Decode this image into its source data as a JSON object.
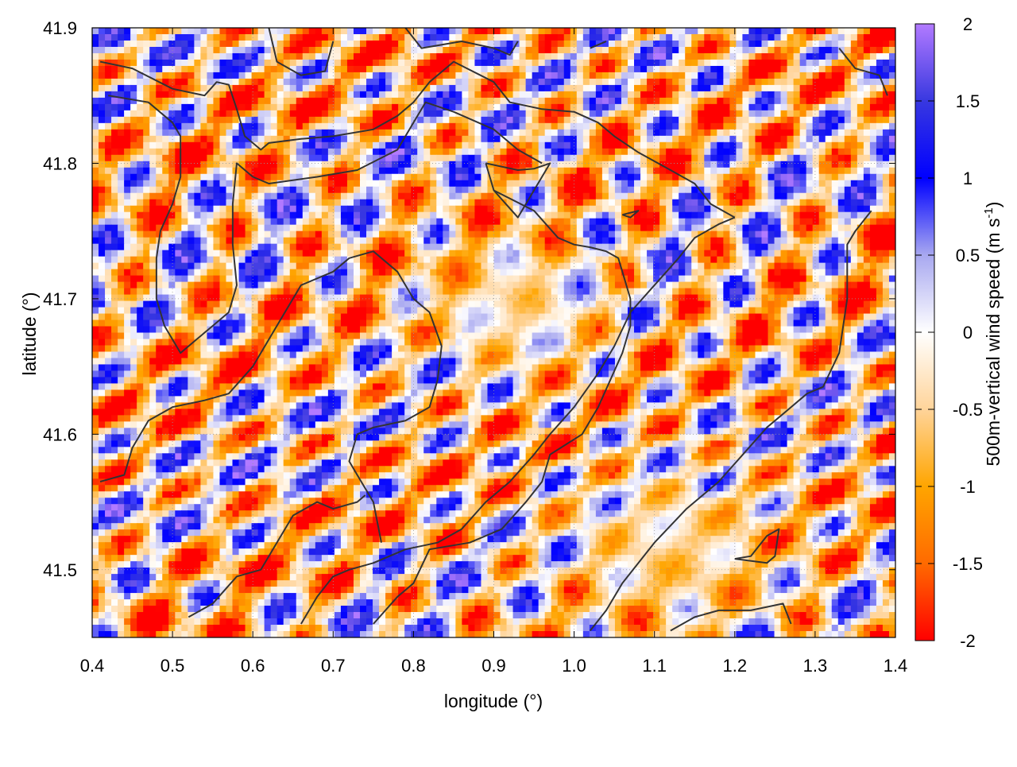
{
  "chart_data": {
    "type": "heatmap",
    "xlabel": "longitude (°)",
    "ylabel": "latitude (°)",
    "xlim": [
      0.4,
      1.4
    ],
    "ylim": [
      41.45,
      41.9
    ],
    "xticks": [
      {
        "value": 0.4,
        "label": "0.4"
      },
      {
        "value": 0.5,
        "label": "0.5"
      },
      {
        "value": 0.6,
        "label": "0.6"
      },
      {
        "value": 0.7,
        "label": "0.7"
      },
      {
        "value": 0.8,
        "label": "0.8"
      },
      {
        "value": 0.9,
        "label": "0.9"
      },
      {
        "value": 1.0,
        "label": "1.0"
      },
      {
        "value": 1.1,
        "label": "1.1"
      },
      {
        "value": 1.2,
        "label": "1.2"
      },
      {
        "value": 1.3,
        "label": "1.3"
      },
      {
        "value": 1.4,
        "label": "1.4"
      }
    ],
    "yticks": [
      {
        "value": 41.5,
        "label": "41.5"
      },
      {
        "value": 41.6,
        "label": "41.6"
      },
      {
        "value": 41.7,
        "label": "41.7"
      },
      {
        "value": 41.8,
        "label": "41.8"
      },
      {
        "value": 41.9,
        "label": "41.9"
      }
    ],
    "grid": true,
    "colorbar": {
      "range": [
        -2,
        2
      ],
      "ticks": [
        {
          "value": 2,
          "label": "2"
        },
        {
          "value": 1.5,
          "label": "1.5"
        },
        {
          "value": 1,
          "label": "1"
        },
        {
          "value": 0.5,
          "label": "0.5"
        },
        {
          "value": 0,
          "label": "0"
        },
        {
          "value": -0.5,
          "label": "-0.5"
        },
        {
          "value": -1,
          "label": "-1"
        },
        {
          "value": -1.5,
          "label": "-1.5"
        },
        {
          "value": -2,
          "label": "-2"
        }
      ],
      "label_main": "500m-vertical wind speed (m s",
      "label_sup": "-1",
      "label_end": ")",
      "stops": [
        {
          "value": -2,
          "color": "#ff0000"
        },
        {
          "value": -1.5,
          "color": "#ff6a00"
        },
        {
          "value": -1,
          "color": "#ffa500"
        },
        {
          "value": -0.5,
          "color": "#ffd49a"
        },
        {
          "value": 0,
          "color": "#ffffff"
        },
        {
          "value": 0.5,
          "color": "#a8a8f0"
        },
        {
          "value": 1,
          "color": "#0000ff"
        },
        {
          "value": 1.5,
          "color": "#3838e0"
        },
        {
          "value": 2,
          "color": "#b27aff"
        }
      ]
    },
    "contours": [
      [
        [
          0.41,
          41.875
        ],
        [
          0.45,
          41.87
        ],
        [
          0.5,
          41.855
        ],
        [
          0.54,
          41.85
        ],
        [
          0.555,
          41.86
        ],
        [
          0.57,
          41.858
        ],
        [
          0.58,
          41.84
        ],
        [
          0.59,
          41.82
        ],
        [
          0.61,
          41.81
        ],
        [
          0.62,
          41.815
        ],
        [
          0.66,
          41.818
        ],
        [
          0.7,
          41.82
        ],
        [
          0.75,
          41.825
        ],
        [
          0.78,
          41.835
        ],
        [
          0.8,
          41.845
        ],
        [
          0.82,
          41.86
        ],
        [
          0.85,
          41.875
        ],
        [
          0.9,
          41.86
        ],
        [
          0.92,
          41.845
        ],
        [
          0.96,
          41.84
        ],
        [
          1.0,
          41.838
        ],
        [
          1.03,
          41.83
        ],
        [
          1.05,
          41.82
        ],
        [
          1.08,
          41.808
        ],
        [
          1.12,
          41.795
        ],
        [
          1.15,
          41.785
        ],
        [
          1.17,
          41.77
        ],
        [
          1.2,
          41.76
        ]
      ],
      [
        [
          0.42,
          41.85
        ],
        [
          0.47,
          41.845
        ],
        [
          0.5,
          41.83
        ],
        [
          0.51,
          41.82
        ],
        [
          0.51,
          41.79
        ],
        [
          0.5,
          41.77
        ],
        [
          0.485,
          41.75
        ],
        [
          0.48,
          41.73
        ],
        [
          0.48,
          41.7
        ],
        [
          0.49,
          41.68
        ],
        [
          0.51,
          41.66
        ],
        [
          0.53,
          41.67
        ],
        [
          0.55,
          41.68
        ],
        [
          0.57,
          41.69
        ],
        [
          0.58,
          41.71
        ],
        [
          0.575,
          41.74
        ],
        [
          0.575,
          41.77
        ],
        [
          0.58,
          41.8
        ],
        [
          0.6,
          41.79
        ],
        [
          0.62,
          41.785
        ],
        [
          0.68,
          41.79
        ],
        [
          0.73,
          41.795
        ],
        [
          0.78,
          41.81
        ],
        [
          0.8,
          41.83
        ],
        [
          0.815,
          41.845
        ],
        [
          0.85,
          41.838
        ],
        [
          0.9,
          41.825
        ],
        [
          0.93,
          41.81
        ],
        [
          0.96,
          41.8
        ]
      ],
      [
        [
          0.62,
          41.9
        ],
        [
          0.63,
          41.875
        ],
        [
          0.66,
          41.865
        ],
        [
          0.69,
          41.868
        ],
        [
          0.7,
          41.89
        ]
      ],
      [
        [
          0.79,
          41.9
        ],
        [
          0.81,
          41.885
        ],
        [
          0.86,
          41.89
        ],
        [
          0.9,
          41.885
        ],
        [
          0.92,
          41.88
        ],
        [
          0.93,
          41.89
        ]
      ],
      [
        [
          0.89,
          41.8
        ],
        [
          0.93,
          41.795
        ],
        [
          0.95,
          41.796
        ],
        [
          0.97,
          41.8
        ],
        [
          0.93,
          41.76
        ],
        [
          0.9,
          41.78
        ],
        [
          0.89,
          41.8
        ]
      ],
      [
        [
          0.9,
          41.78
        ],
        [
          0.95,
          41.765
        ],
        [
          0.98,
          41.745
        ],
        [
          1.0,
          41.74
        ],
        [
          1.02,
          41.738
        ],
        [
          1.04,
          41.735
        ],
        [
          1.055,
          41.73
        ],
        [
          1.06,
          41.72
        ],
        [
          1.07,
          41.7
        ],
        [
          1.07,
          41.68
        ],
        [
          1.06,
          41.66
        ],
        [
          1.045,
          41.64
        ],
        [
          1.03,
          41.62
        ],
        [
          1.01,
          41.6
        ],
        [
          0.97,
          41.585
        ],
        [
          0.96,
          41.565
        ],
        [
          0.94,
          41.55
        ],
        [
          0.91,
          41.53
        ],
        [
          0.87,
          41.52
        ],
        [
          0.82,
          41.515
        ],
        [
          0.8,
          41.49
        ],
        [
          0.78,
          41.48
        ],
        [
          0.75,
          41.46
        ]
      ],
      [
        [
          1.06,
          41.762
        ],
        [
          1.08,
          41.765
        ],
        [
          1.07,
          41.76
        ],
        [
          1.06,
          41.762
        ]
      ],
      [
        [
          0.41,
          41.565
        ],
        [
          0.44,
          41.57
        ],
        [
          0.45,
          41.59
        ],
        [
          0.47,
          41.61
        ],
        [
          0.5,
          41.62
        ],
        [
          0.54,
          41.625
        ],
        [
          0.57,
          41.63
        ],
        [
          0.6,
          41.65
        ],
        [
          0.62,
          41.67
        ],
        [
          0.64,
          41.69
        ],
        [
          0.66,
          41.71
        ],
        [
          0.7,
          41.72
        ],
        [
          0.72,
          41.73
        ],
        [
          0.75,
          41.735
        ],
        [
          0.78,
          41.72
        ],
        [
          0.8,
          41.7
        ],
        [
          0.82,
          41.69
        ],
        [
          0.835,
          41.665
        ],
        [
          0.83,
          41.64
        ],
        [
          0.82,
          41.62
        ],
        [
          0.79,
          41.61
        ],
        [
          0.75,
          41.605
        ],
        [
          0.73,
          41.6
        ],
        [
          0.72,
          41.58
        ],
        [
          0.73,
          41.57
        ],
        [
          0.75,
          41.55
        ],
        [
          0.76,
          41.52
        ]
      ],
      [
        [
          0.52,
          41.465
        ],
        [
          0.55,
          41.475
        ],
        [
          0.58,
          41.495
        ],
        [
          0.61,
          41.5
        ],
        [
          0.62,
          41.51
        ],
        [
          0.63,
          41.52
        ],
        [
          0.65,
          41.54
        ],
        [
          0.68,
          41.55
        ],
        [
          0.7,
          41.545
        ],
        [
          0.73,
          41.55
        ],
        [
          0.74,
          41.555
        ]
      ],
      [
        [
          0.66,
          41.46
        ],
        [
          0.68,
          41.48
        ],
        [
          0.7,
          41.495
        ],
        [
          0.72,
          41.5
        ],
        [
          0.75,
          41.505
        ],
        [
          0.79,
          41.515
        ],
        [
          0.83,
          41.52
        ],
        [
          0.86,
          41.53
        ],
        [
          0.89,
          41.55
        ],
        [
          0.92,
          41.565
        ],
        [
          0.95,
          41.585
        ],
        [
          0.97,
          41.6
        ],
        [
          1.0,
          41.62
        ],
        [
          1.03,
          41.645
        ],
        [
          1.05,
          41.665
        ],
        [
          1.07,
          41.69
        ],
        [
          1.1,
          41.71
        ],
        [
          1.13,
          41.73
        ],
        [
          1.15,
          41.745
        ],
        [
          1.18,
          41.755
        ],
        [
          1.2,
          41.76
        ]
      ],
      [
        [
          1.02,
          41.455
        ],
        [
          1.04,
          41.47
        ],
        [
          1.06,
          41.49
        ],
        [
          1.1,
          41.52
        ],
        [
          1.14,
          41.545
        ],
        [
          1.18,
          41.565
        ],
        [
          1.21,
          41.585
        ],
        [
          1.24,
          41.605
        ],
        [
          1.26,
          41.615
        ],
        [
          1.29,
          41.63
        ],
        [
          1.31,
          41.635
        ],
        [
          1.33,
          41.66
        ],
        [
          1.34,
          41.7
        ],
        [
          1.34,
          41.74
        ],
        [
          1.35,
          41.75
        ],
        [
          1.37,
          41.765
        ]
      ],
      [
        [
          1.2,
          41.508
        ],
        [
          1.24,
          41.505
        ],
        [
          1.25,
          41.51
        ],
        [
          1.255,
          41.53
        ],
        [
          1.24,
          41.525
        ],
        [
          1.22,
          41.51
        ],
        [
          1.2,
          41.508
        ]
      ],
      [
        [
          1.12,
          41.455
        ],
        [
          1.15,
          41.465
        ],
        [
          1.18,
          41.47
        ],
        [
          1.22,
          41.47
        ],
        [
          1.26,
          41.475
        ],
        [
          1.27,
          41.46
        ]
      ],
      [
        [
          1.33,
          41.885
        ],
        [
          1.35,
          41.87
        ],
        [
          1.38,
          41.865
        ],
        [
          1.39,
          41.85
        ]
      ],
      [
        [
          1.02,
          41.885
        ],
        [
          1.04,
          41.89
        ]
      ]
    ]
  }
}
